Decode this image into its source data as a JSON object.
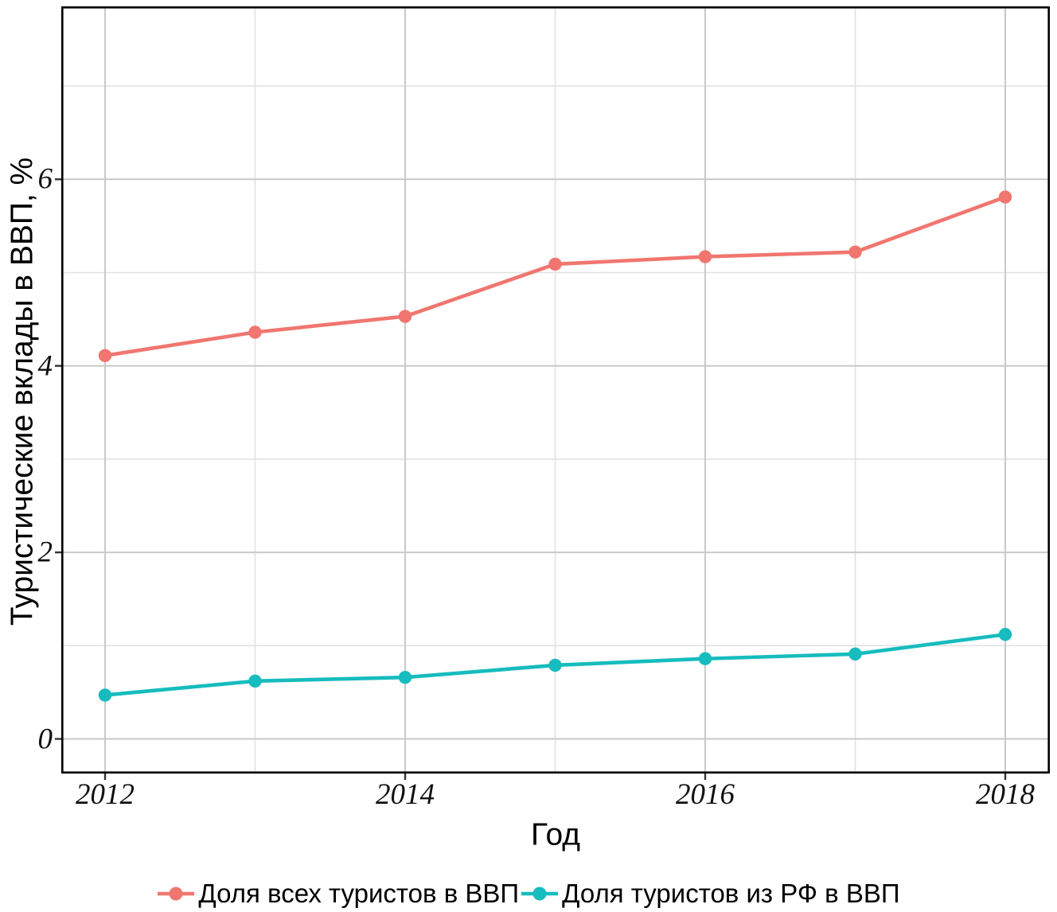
{
  "chart_data": {
    "type": "line",
    "title": "",
    "xlabel": "Год",
    "ylabel": "Туристические вклады в ВВП, %",
    "x": [
      2012,
      2013,
      2014,
      2015,
      2016,
      2017,
      2018
    ],
    "series": [
      {
        "name": "Доля всех туристов в ВВП",
        "color": "#F0766F",
        "values": [
          4.11,
          4.36,
          4.53,
          5.09,
          5.17,
          5.22,
          5.81
        ]
      },
      {
        "name": "Доля туристов из РФ в ВВП",
        "color": "#16BCBE",
        "values": [
          0.47,
          0.62,
          0.66,
          0.79,
          0.86,
          0.91,
          1.12
        ]
      }
    ],
    "xlim": [
      2011.71,
      2018.3
    ],
    "ylim": [
      -0.37,
      7.85
    ],
    "x_major_ticks": [
      2012,
      2014,
      2016,
      2018
    ],
    "x_minor_ticks": [
      2013,
      2015,
      2017
    ],
    "y_major_ticks": [
      0,
      2,
      4,
      6
    ],
    "y_minor_ticks": [
      1,
      3,
      5,
      7
    ],
    "x_tick_labels": [
      "2012",
      "2014",
      "2016",
      "2018"
    ],
    "y_tick_labels": [
      "0",
      "2",
      "4",
      "6"
    ],
    "grid": true,
    "panel_border": true,
    "legend_position": "bottom"
  }
}
